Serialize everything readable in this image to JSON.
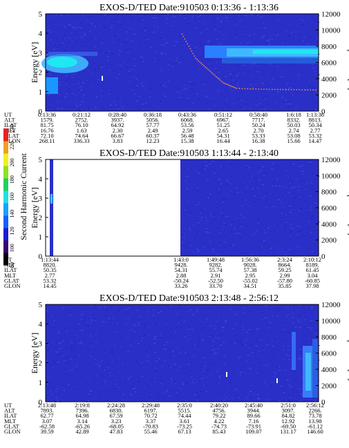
{
  "chart_data": [
    {
      "type": "heatmap",
      "title": "EXOS-D/TED   Date:910503   0:13:36 - 1:13:36",
      "ylabel": "Energy [eV]",
      "y2label": "Temperature [K]",
      "ylim": [
        0,
        5
      ],
      "y2lim": [
        0,
        12000
      ],
      "yticks": [
        "0",
        "1",
        "2",
        "3",
        "4",
        "5"
      ],
      "y2ticks": [
        "0",
        "2000",
        "4000",
        "6000",
        "8000",
        "10000",
        "12000"
      ],
      "temperature_trace": {
        "x": [
          0.0,
          0.1,
          0.2,
          0.3,
          0.4,
          0.5,
          0.55,
          0.6,
          0.65,
          0.7,
          0.8,
          0.9,
          1.0
        ],
        "y": [
          null,
          null,
          null,
          null,
          null,
          9500,
          6500,
          5000,
          3500,
          2800,
          2700,
          2650,
          2600
        ]
      },
      "orbit_labels": [
        "UT",
        "ALT",
        "ILAT",
        "MLT",
        "GLAT",
        "GLON"
      ],
      "orbit_columns": [
        [
          "0:13:36",
          "1579.",
          "81.75",
          "16.76",
          "72.10",
          "268.11"
        ],
        [
          "0:21:12",
          "2752.",
          "76.10",
          "1.63",
          "74.64",
          "336.33"
        ],
        [
          "0:28:40",
          "3937.",
          "64.92",
          "2.30",
          "66.67",
          "3.83"
        ],
        [
          "0:36:18",
          "5056.",
          "57.77",
          "2.49",
          "60.37",
          "12.23"
        ],
        [
          "0:43:36",
          "6068.",
          "53.56",
          "2.59",
          "56.48",
          "15.38"
        ],
        [
          "0:51:12",
          "6967.",
          "51.25",
          "2.65",
          "54.31",
          "16.44"
        ],
        [
          "0:58:40",
          "7717.",
          "50.24",
          "2.70",
          "53.33",
          "16.38"
        ],
        [
          "1:6:18",
          "8332.",
          "50.03",
          "2.74",
          "53.08",
          "15.66"
        ],
        [
          "1:13:36",
          "8813.",
          "50.34",
          "2.77",
          "53.32",
          "14.47"
        ]
      ]
    },
    {
      "type": "heatmap",
      "title": "EXOS-D/TED   Date:910503   1:13:44 - 2:13:40",
      "ylabel": "Energy [eV]",
      "y2label": "Temperature [K]",
      "ylim": [
        0,
        5
      ],
      "y2lim": [
        0,
        12000
      ],
      "yticks": [
        "0",
        "1",
        "2",
        "3",
        "4",
        "5"
      ],
      "y2ticks": [
        "0",
        "2000",
        "4000",
        "6000",
        "8000",
        "10000",
        "12000"
      ],
      "orbit_labels": [
        "UT",
        "ALT",
        "ILAT",
        "MLT",
        "GLAT",
        "GLON"
      ],
      "orbit_columns": [
        [
          "1:13:44",
          "8820.",
          "50.35",
          "2.77",
          "53.32",
          "14.45"
        ],
        [
          "1:43:0",
          "9428.",
          "54.31",
          "2.88",
          "-50.24",
          "33.26"
        ],
        [
          "1:49:48",
          "9282.",
          "55.74",
          "2.91",
          "-52.50",
          "33.70"
        ],
        [
          "1:56:36",
          "9028.",
          "57.38",
          "2.95",
          "-55.02",
          "34.51"
        ],
        [
          "2:3:24",
          "8664.",
          "59.25",
          "2.99",
          "-57.80",
          "35.85"
        ],
        [
          "2:10:12",
          "8189.",
          "61.45",
          "3.04",
          "-60.85",
          "37.98"
        ]
      ]
    },
    {
      "type": "heatmap",
      "title": "EXOS-D/TED   Date:910503   2:13:48 - 2:56:12",
      "ylabel": "Energy [eV]",
      "y2label": "Temperature [K]",
      "ylim": [
        0,
        5
      ],
      "y2lim": [
        0,
        12000
      ],
      "yticks": [
        "0",
        "1",
        "2",
        "3",
        "4",
        "5"
      ],
      "y2ticks": [
        "0",
        "2000",
        "4000",
        "6000",
        "8000",
        "10000",
        "12000"
      ],
      "orbit_labels": [
        "UT",
        "ALT",
        "ILAT",
        "MLT",
        "GLAT",
        "GLON"
      ],
      "orbit_columns": [
        [
          "2:13:48",
          "7893.",
          "62.77",
          "3.07",
          "-62.58",
          "39.59"
        ],
        [
          "2:19:8",
          "7396.",
          "64.98",
          "3.14",
          "-65.26",
          "42.89"
        ],
        [
          "2:24:28",
          "6830.",
          "67.59",
          "3.23",
          "-68.05",
          "47.83"
        ],
        [
          "2:29:48",
          "6197.",
          "70.72",
          "3.37",
          "-70.83",
          "55.46"
        ],
        [
          "2:35:0",
          "5515.",
          "74.44",
          "3.61",
          "-73.25",
          "67.13"
        ],
        [
          "2:40:20",
          "4756.",
          "79.22",
          "4.22",
          "-74.73",
          "85.43"
        ],
        [
          "2:45:40",
          "3944.",
          "89.66",
          "7.16",
          "-73.91",
          "109.07"
        ],
        [
          "2:51:0",
          "3097.",
          "84.82",
          "12.92",
          "-69.50",
          "131.17"
        ],
        [
          "2:56:12",
          "2266.",
          "73.78",
          "13.98",
          "-61.12",
          "146.60"
        ]
      ]
    }
  ],
  "colorbar": {
    "label": "Second Harmonic Current",
    "ticks": [
      "80",
      "100",
      "120",
      "140",
      "160",
      "180",
      "200",
      "220",
      "240"
    ],
    "colors": [
      "#000000",
      "#3a0070",
      "#1c1cd0",
      "#1660ff",
      "#1aa0ff",
      "#20e0e0",
      "#20d060",
      "#90e020",
      "#f0f020",
      "#f0a020",
      "#e82020"
    ]
  },
  "palette": {
    "background": "#2a2fc8",
    "speck": "#4a5ae8",
    "cyan": "#20e8f0",
    "light": "#40b8ff",
    "orange": "#e89048",
    "dark": "#1a0a5a"
  }
}
